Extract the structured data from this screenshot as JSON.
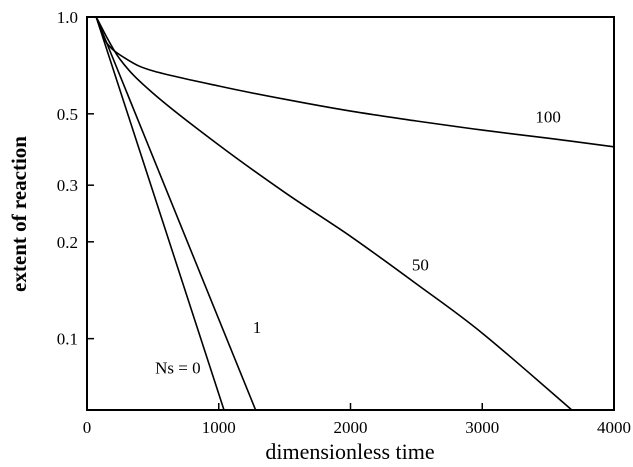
{
  "chart_data": {
    "type": "line",
    "title": "",
    "xlabel": "dimensionless time",
    "ylabel": "extent of reaction",
    "xlim": [
      0,
      4000
    ],
    "ylim": [
      0.06,
      1.0
    ],
    "y_scale": "log",
    "grid": false,
    "x_ticks": [
      {
        "value": 0,
        "label": "0"
      },
      {
        "value": 1000,
        "label": "1000"
      },
      {
        "value": 2000,
        "label": "2000"
      },
      {
        "value": 3000,
        "label": "3000"
      },
      {
        "value": 4000,
        "label": "4000"
      }
    ],
    "y_ticks": [
      {
        "value": 0.1,
        "label": "0.1"
      },
      {
        "value": 0.2,
        "label": "0.2"
      },
      {
        "value": 0.3,
        "label": "0.3"
      },
      {
        "value": 0.5,
        "label": "0.5"
      },
      {
        "value": 1.0,
        "label": "1.0"
      }
    ],
    "series": [
      {
        "label": "Ns = 0",
        "x": [
          70,
          1040
        ],
        "y": [
          1.0,
          0.06
        ]
      },
      {
        "label": "1",
        "x": [
          70,
          1280
        ],
        "y": [
          1.0,
          0.06
        ]
      },
      {
        "label": "50",
        "x": [
          70,
          250,
          500,
          1000,
          1500,
          2000,
          2500,
          3000,
          3680
        ],
        "y": [
          1.0,
          0.74,
          0.58,
          0.4,
          0.285,
          0.208,
          0.148,
          0.104,
          0.06
        ]
      },
      {
        "label": "100",
        "x": [
          70,
          150,
          300,
          500,
          1000,
          1500,
          2000,
          2500,
          3000,
          3500,
          4000
        ],
        "y": [
          1.0,
          0.83,
          0.74,
          0.68,
          0.61,
          0.555,
          0.51,
          0.475,
          0.445,
          0.42,
          0.395
        ]
      }
    ],
    "annotations": [
      {
        "text": "Ns = 0",
        "x": 690,
        "y": 0.078
      },
      {
        "text": "1",
        "x": 1290,
        "y": 0.104
      },
      {
        "text": "50",
        "x": 2530,
        "y": 0.163
      },
      {
        "text": "100",
        "x": 3500,
        "y": 0.47
      }
    ]
  }
}
